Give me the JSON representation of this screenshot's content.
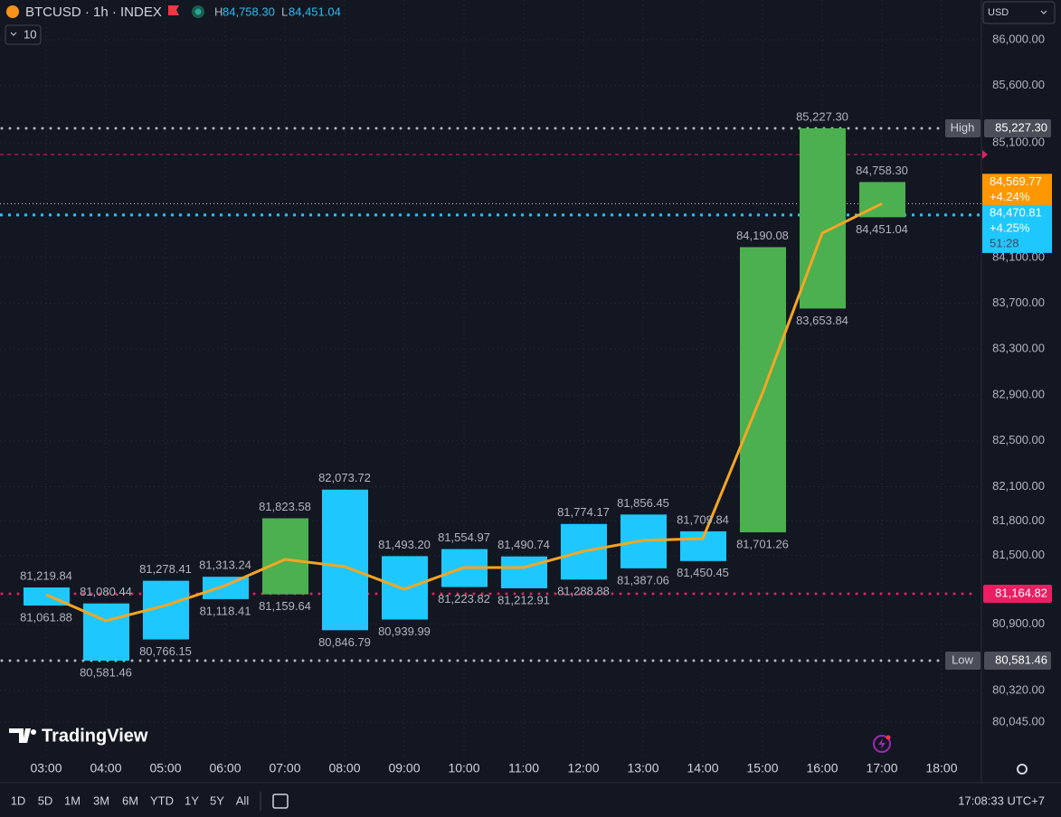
{
  "header": {
    "symbol": "BTCUSD · 1h · INDEX",
    "high_prefix": "H",
    "high": "84,758.30",
    "low_prefix": "L",
    "low": "84,451.04",
    "interval_button": "10",
    "currency": "USD"
  },
  "watermark": "TradingView",
  "chart_data": {
    "type": "range-bar",
    "categories": [
      "03:00",
      "04:00",
      "05:00",
      "06:00",
      "07:00",
      "08:00",
      "09:00",
      "10:00",
      "11:00",
      "12:00",
      "13:00",
      "14:00",
      "15:00",
      "16:00",
      "17:00",
      "18:00"
    ],
    "highs": [
      81219.84,
      81080.44,
      81278.41,
      81313.24,
      81823.58,
      82073.72,
      81493.2,
      81554.97,
      81490.74,
      81774.17,
      81856.45,
      81709.84,
      84190.08,
      85227.3,
      84758.3,
      null
    ],
    "high_labels": [
      "81,219.84",
      "81,080.44",
      "81,278.41",
      "81,313.24",
      "81,823.58",
      "82,073.72",
      "81,493.20",
      "81,554.97",
      "81,490.74",
      "81,774.17",
      "81,856.45",
      "81,709.84",
      "84,190.08",
      "85,227.30",
      "84,758.30",
      null
    ],
    "lows": [
      81061.88,
      80581.46,
      80766.15,
      81118.41,
      81159.64,
      80846.79,
      80939.99,
      81223.82,
      81212.91,
      81288.88,
      81387.06,
      81450.45,
      81701.26,
      83653.84,
      84451.04,
      null
    ],
    "low_labels": [
      "81,061.88",
      "80,581.46",
      "80,766.15",
      "81,118.41",
      "81,159.64",
      "80,846.79",
      "80,939.99",
      "81,223.82",
      "81,212.91",
      "81,288.88",
      "81,387.06",
      "81,450.45",
      "81,701.26",
      "83,653.84",
      "84,451.04",
      null
    ],
    "colors": [
      "#1ec8ff",
      "#1ec8ff",
      "#1ec8ff",
      "#1ec8ff",
      "#4caf50",
      "#1ec8ff",
      "#1ec8ff",
      "#1ec8ff",
      "#1ec8ff",
      "#1ec8ff",
      "#1ec8ff",
      "#1ec8ff",
      "#4caf50",
      "#4caf50",
      "#4caf50",
      null
    ],
    "line": {
      "color": "#f5a623",
      "values": [
        81157,
        80929,
        81063,
        81236,
        81465,
        81402,
        81205,
        81394,
        81394,
        81536,
        81630,
        81646,
        82916,
        84312,
        84570,
        null
      ]
    },
    "ylim": [
      79753,
      86347
    ],
    "yticks": [
      {
        "value": 80045,
        "label": "80,045.00"
      },
      {
        "value": 80320,
        "label": "80,320.00"
      },
      {
        "value": 80900,
        "label": "80,900.00"
      },
      {
        "value": 81500,
        "label": "81,500.00"
      },
      {
        "value": 81800,
        "label": "81,800.00"
      },
      {
        "value": 82100,
        "label": "82,100.00"
      },
      {
        "value": 82500,
        "label": "82,500.00"
      },
      {
        "value": 82900,
        "label": "82,900.00"
      },
      {
        "value": 83300,
        "label": "83,300.00"
      },
      {
        "value": 83700,
        "label": "83,700.00"
      },
      {
        "value": 84100,
        "label": "84,100.00"
      },
      {
        "value": 85100,
        "label": "85,100.00"
      },
      {
        "value": 85600,
        "label": "85,600.00"
      },
      {
        "value": 86000,
        "label": "86,000.00"
      }
    ],
    "grid": true,
    "levels": [
      {
        "name": "High",
        "value": 85227.3,
        "label": "85,227.30",
        "color": "#b2b5be"
      },
      {
        "name": "Low",
        "value": 80581.46,
        "label": "80,581.46",
        "color": "#b2b5be"
      },
      {
        "value": 81164.82,
        "label": "81,164.82",
        "color": "#e91e63"
      }
    ],
    "dashed_level": {
      "value": 84998,
      "color": "#e91e63"
    },
    "price_tags": [
      {
        "value": 84569.77,
        "label": "84,569.77",
        "change": "+4.24%",
        "color": "#ff9800"
      },
      {
        "value": 84470.81,
        "label": "84,470.81",
        "change": "+4.25%",
        "countdown": "51:28",
        "color": "#1ec8ff"
      }
    ]
  },
  "footer": {
    "ranges": [
      "1D",
      "5D",
      "1M",
      "3M",
      "6M",
      "YTD",
      "1Y",
      "5Y",
      "All"
    ],
    "clock": "17:08:33 UTC+7"
  }
}
